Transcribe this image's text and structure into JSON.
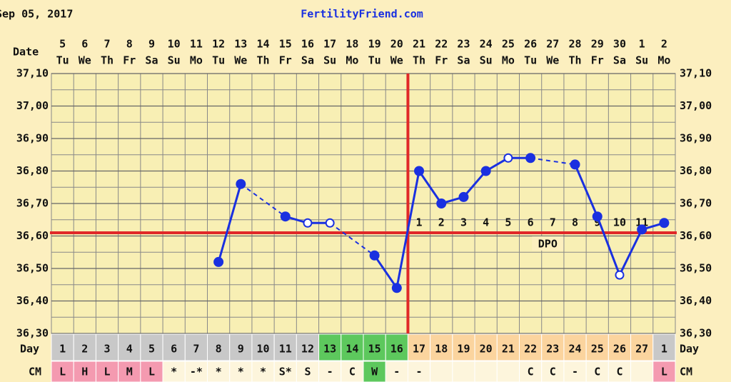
{
  "chart_data": {
    "type": "line",
    "date": "Sep 05, 2017",
    "title": "FertilityFriend.com",
    "date_label": "Date",
    "day_label": "Day",
    "cm_label": "CM",
    "dpo_label": "DPO",
    "categories": [
      "5",
      "6",
      "7",
      "8",
      "9",
      "10",
      "11",
      "12",
      "13",
      "14",
      "15",
      "16",
      "17",
      "18",
      "19",
      "20",
      "21",
      "22",
      "23",
      "24",
      "25",
      "26",
      "27",
      "28",
      "29",
      "30",
      "1",
      "2"
    ],
    "weekdays": [
      "Tu",
      "We",
      "Th",
      "Fr",
      "Sa",
      "Su",
      "Mo",
      "Tu",
      "We",
      "Th",
      "Fr",
      "Sa",
      "Su",
      "Mo",
      "Tu",
      "We",
      "Th",
      "Fr",
      "Sa",
      "Su",
      "Mo",
      "Tu",
      "We",
      "Th",
      "Fr",
      "Sa",
      "Su",
      "Mo"
    ],
    "cycle_days": [
      1,
      2,
      3,
      4,
      5,
      6,
      7,
      8,
      9,
      10,
      11,
      12,
      13,
      14,
      15,
      16,
      17,
      18,
      19,
      20,
      21,
      22,
      23,
      24,
      25,
      26,
      27,
      1
    ],
    "cycle_day_colors": [
      "#c8c8c8",
      "#c8c8c8",
      "#c8c8c8",
      "#c8c8c8",
      "#c8c8c8",
      "#c8c8c8",
      "#c8c8c8",
      "#c8c8c8",
      "#c8c8c8",
      "#c8c8c8",
      "#c8c8c8",
      "#c8c8c8",
      "#5dc85d",
      "#5dc85d",
      "#5dc85d",
      "#5dc85d",
      "#fbd49e",
      "#fbd49e",
      "#fbd49e",
      "#fbd49e",
      "#fbd49e",
      "#fbd49e",
      "#fbd49e",
      "#fbd49e",
      "#fbd49e",
      "#fbd49e",
      "#fbd49e",
      "#c8c8c8"
    ],
    "cm": [
      "L",
      "H",
      "L",
      "M",
      "L",
      "*",
      "-*",
      "*",
      "*",
      "*",
      "S*",
      "S",
      "-",
      "C",
      "W",
      "-",
      "-",
      null,
      null,
      null,
      null,
      "C",
      "C",
      "-",
      "C",
      "C",
      null,
      "L"
    ],
    "cm_colors": [
      "#f49ab0",
      "#f49ab0",
      "#f49ab0",
      "#f49ab0",
      "#f49ab0",
      "#fdf5dc",
      "#fdf5dc",
      "#fdf5dc",
      "#fdf5dc",
      "#fdf5dc",
      "#fdf5dc",
      "#fdf5dc",
      "#fdf5dc",
      "#fdf5dc",
      "#5dc85d",
      "#fdf5dc",
      "#fdf5dc",
      "#fdf5dc",
      "#fdf5dc",
      "#fdf5dc",
      "#fdf5dc",
      "#fdf5dc",
      "#fdf5dc",
      "#fdf5dc",
      "#fdf5dc",
      "#fdf5dc",
      "#fdf5dc",
      "#f49ab0"
    ],
    "dpo": [
      null,
      null,
      null,
      null,
      null,
      null,
      null,
      null,
      null,
      null,
      null,
      null,
      null,
      null,
      null,
      null,
      1,
      2,
      3,
      4,
      5,
      6,
      7,
      8,
      9,
      10,
      11,
      null
    ],
    "series": [
      {
        "name": "Temperature",
        "color": "#1a30e0",
        "values": [
          null,
          null,
          null,
          null,
          null,
          null,
          null,
          36.52,
          36.76,
          null,
          36.66,
          36.64,
          36.64,
          null,
          36.54,
          36.44,
          36.8,
          36.7,
          36.72,
          36.8,
          36.84,
          36.84,
          null,
          36.82,
          36.66,
          36.48,
          36.62,
          36.64
        ],
        "open_markers": [
          false,
          false,
          false,
          false,
          false,
          false,
          false,
          false,
          false,
          false,
          false,
          true,
          true,
          false,
          false,
          false,
          false,
          false,
          false,
          false,
          true,
          false,
          false,
          false,
          false,
          true,
          false,
          false
        ]
      }
    ],
    "coverline": 36.61,
    "coverline_color": "#e02828",
    "ovulation_index": 15,
    "ylim": [
      36.3,
      37.1
    ],
    "yticks": [
      {
        "value": 36.3,
        "label": "36,30"
      },
      {
        "value": 36.4,
        "label": "36,40"
      },
      {
        "value": 36.5,
        "label": "36,50"
      },
      {
        "value": 36.6,
        "label": "36,60"
      },
      {
        "value": 36.7,
        "label": "36,70"
      },
      {
        "value": 36.8,
        "label": "36,80"
      },
      {
        "value": 36.9,
        "label": "36,90"
      },
      {
        "value": 37.0,
        "label": "37,00"
      },
      {
        "value": 37.1,
        "label": "37,10"
      }
    ],
    "minor_yticks": [
      36.35,
      36.45,
      36.55,
      36.65,
      36.75,
      36.85,
      36.95,
      37.05
    ],
    "grid": true
  }
}
